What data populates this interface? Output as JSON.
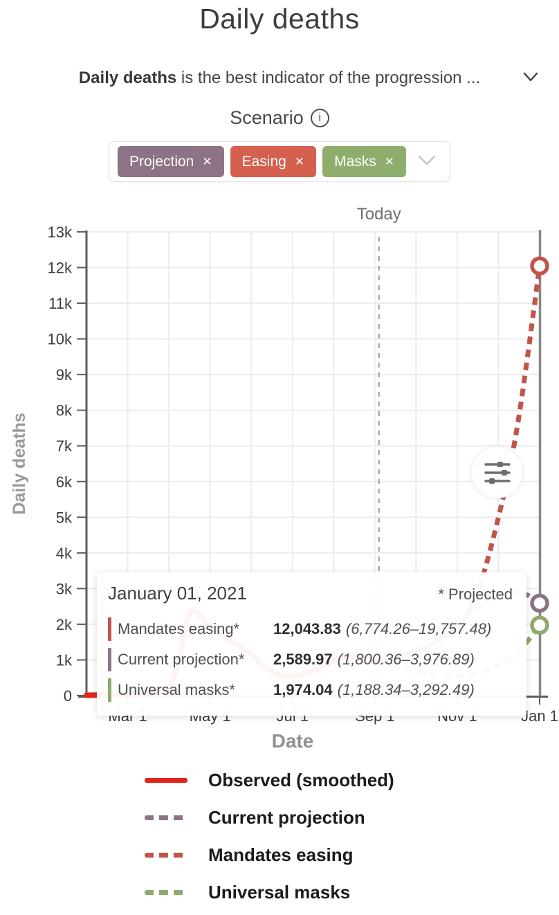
{
  "page": {
    "title": "Daily deaths"
  },
  "description": {
    "bold": "Daily deaths",
    "rest": " is the best indicator of the progression ..."
  },
  "scenario": {
    "label": "Scenario",
    "info_glyph": "i",
    "close_glyph": "✕",
    "chips": [
      {
        "label": "Projection",
        "color": "#8d7386"
      },
      {
        "label": "Easing",
        "color": "#d6604f"
      },
      {
        "label": "Masks",
        "color": "#8fae6e"
      }
    ]
  },
  "tooltip": {
    "date": "January 01, 2021",
    "note": "* Projected",
    "rows": [
      {
        "label": "Mandates easing*",
        "value": "12,043.83",
        "range": "(6,774.26–19,757.48)",
        "color": "#c2544a"
      },
      {
        "label": "Current projection*",
        "value": "2,589.97",
        "range": "(1,800.36–3,976.89)",
        "color": "#8d7386"
      },
      {
        "label": "Universal masks*",
        "value": "1,974.04",
        "range": "(1,188.34–3,292.49)",
        "color": "#90a96e"
      }
    ]
  },
  "chart_data": {
    "type": "line",
    "xlabel": "Date",
    "ylabel": "Daily deaths",
    "ylim": [
      0,
      13000
    ],
    "x_range": [
      "Feb 1",
      "Jan 1"
    ],
    "grid": "monthly vertical, 1k horizontal",
    "y_ticks": [
      "0",
      "1k",
      "2k",
      "3k",
      "4k",
      "5k",
      "6k",
      "7k",
      "8k",
      "9k",
      "10k",
      "11k",
      "12k",
      "13k"
    ],
    "x_ticks": [
      "Mar 1",
      "May 1",
      "Jul 1",
      "Sep 1",
      "Nov 1",
      "Jan 1"
    ],
    "today": {
      "label": "Today",
      "date": "Sep 4"
    },
    "series": [
      {
        "name": "Observed (smoothed)",
        "color": "#e0261c",
        "style": "solid",
        "points": [
          [
            "Feb 1",
            10
          ],
          [
            "Mar 1",
            30
          ],
          [
            "Mar 22",
            90
          ],
          [
            "Apr 1",
            250
          ],
          [
            "Apr 8",
            900
          ],
          [
            "Apr 17",
            2350
          ],
          [
            "May 1",
            1900
          ],
          [
            "May 15",
            1550
          ],
          [
            "Jun 1",
            1170
          ],
          [
            "Jun 10",
            820
          ],
          [
            "Jun 25",
            550
          ],
          [
            "Jul 15",
            680
          ],
          [
            "Aug 5",
            1050
          ],
          [
            "Aug 20",
            1010
          ],
          [
            "Sep 4",
            930
          ]
        ]
      },
      {
        "name": "Mandates easing",
        "color": "#c2544a",
        "style": "dashed",
        "end_value": 12043.83,
        "points": [
          [
            "Sep 4",
            930
          ],
          [
            "Oct 1",
            1250
          ],
          [
            "Oct 20",
            1600
          ],
          [
            "Nov 1",
            1930
          ],
          [
            "Nov 15",
            2800
          ],
          [
            "Dec 1",
            5000
          ],
          [
            "Dec 15",
            7600
          ],
          [
            "Jan 1",
            12043.83
          ]
        ]
      },
      {
        "name": "Current projection",
        "color": "#8d7386",
        "style": "dashed",
        "end_value": 2589.97,
        "points": [
          [
            "Sep 4",
            930
          ],
          [
            "Oct 1",
            1250
          ],
          [
            "Oct 20",
            1600
          ],
          [
            "Nov 1",
            1930
          ],
          [
            "Nov 15",
            2500
          ],
          [
            "Dec 5",
            2900
          ],
          [
            "Dec 20",
            2850
          ],
          [
            "Jan 1",
            2589.97
          ]
        ]
      },
      {
        "name": "Universal masks",
        "color": "#90a96e",
        "style": "dashed",
        "end_value": 1974.04,
        "points": [
          [
            "Sep 4",
            930
          ],
          [
            "Sep 20",
            750
          ],
          [
            "Oct 10",
            590
          ],
          [
            "Nov 1",
            550
          ],
          [
            "Nov 15",
            610
          ],
          [
            "Dec 1",
            880
          ],
          [
            "Dec 15",
            1200
          ],
          [
            "Jan 1",
            1974.04
          ]
        ]
      }
    ]
  },
  "legend": {
    "items": [
      {
        "label": "Observed (smoothed)",
        "color": "#e0261c",
        "style": "solid"
      },
      {
        "label": "Current projection",
        "color": "#8d7386",
        "style": "dashed"
      },
      {
        "label": "Mandates easing",
        "color": "#c2544a",
        "style": "dashed"
      },
      {
        "label": "Universal masks",
        "color": "#90a96e",
        "style": "dashed"
      }
    ]
  }
}
